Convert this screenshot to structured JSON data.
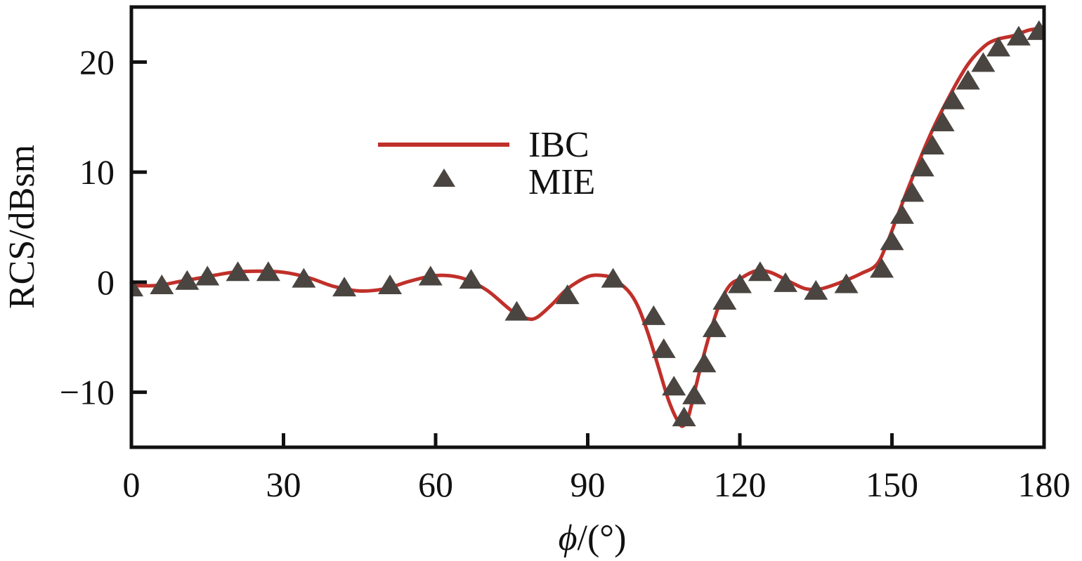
{
  "chart_data": {
    "type": "line",
    "title": "",
    "xlabel": "/(°)",
    "xlabel_symbol": "ϕ",
    "ylabel": "RCS/dBsm",
    "xlim": [
      0,
      180
    ],
    "ylim": [
      -15,
      25
    ],
    "xticks": [
      0,
      30,
      60,
      90,
      120,
      150,
      180
    ],
    "yticks": [
      -10,
      0,
      10,
      20
    ],
    "xtick_labels": [
      "0",
      "30",
      "60",
      "90",
      "120",
      "150",
      "180"
    ],
    "ytick_labels": [
      "−10",
      "0",
      "10",
      "20"
    ],
    "legend_position": "upper-center",
    "series": [
      {
        "name": "IBC",
        "style": "line",
        "color": "#c0302a",
        "x": [
          0,
          5,
          10,
          15,
          20,
          25,
          30,
          35,
          40,
          45,
          50,
          55,
          60,
          65,
          70,
          75,
          78,
          80,
          83,
          86,
          90,
          93,
          95,
          98,
          100,
          102,
          104,
          106,
          108,
          109,
          110,
          112,
          114,
          116,
          118,
          120,
          123,
          126,
          130,
          133,
          136,
          140,
          144,
          147,
          149,
          151,
          153,
          155,
          157,
          159,
          161,
          163,
          165,
          167,
          169,
          171,
          174,
          177,
          180
        ],
        "y": [
          -0.3,
          -0.3,
          0.1,
          0.5,
          0.9,
          1.0,
          0.9,
          0.4,
          -0.4,
          -0.8,
          -0.6,
          0.1,
          0.6,
          0.4,
          -0.7,
          -2.6,
          -3.3,
          -3.2,
          -2.0,
          -0.6,
          0.5,
          0.6,
          0.3,
          -0.8,
          -2.3,
          -4.8,
          -7.8,
          -10.8,
          -12.8,
          -13.0,
          -12.0,
          -8.2,
          -4.8,
          -2.0,
          -0.3,
          0.3,
          1.0,
          0.9,
          0.0,
          -0.6,
          -0.6,
          0.0,
          0.8,
          1.6,
          3.5,
          5.9,
          8.3,
          10.6,
          12.8,
          14.8,
          16.6,
          18.3,
          19.8,
          20.9,
          21.7,
          22.1,
          22.4,
          22.9,
          23.1
        ]
      },
      {
        "name": "MIE",
        "style": "markers",
        "color": "#4a4540",
        "x": [
          0,
          6,
          11,
          15,
          21,
          27,
          34,
          42,
          51,
          59,
          67,
          76,
          86,
          95,
          103,
          105,
          107,
          109,
          111,
          113,
          115,
          117,
          120,
          124,
          129,
          135,
          141,
          148,
          150,
          152,
          154,
          156,
          158,
          160,
          162,
          165,
          168,
          171,
          175,
          179
        ],
        "y": [
          -0.4,
          -0.2,
          0.2,
          0.6,
          1.0,
          1.0,
          0.4,
          -0.4,
          -0.2,
          0.6,
          0.3,
          -2.6,
          -1.1,
          0.4,
          -3.0,
          -6.0,
          -9.4,
          -12.2,
          -10.2,
          -7.3,
          -4.1,
          -1.6,
          -0.1,
          1.0,
          0.0,
          -0.7,
          -0.1,
          1.3,
          3.8,
          6.2,
          8.2,
          10.5,
          12.5,
          14.6,
          16.6,
          18.4,
          20.0,
          21.4,
          22.4,
          22.9
        ]
      }
    ]
  }
}
